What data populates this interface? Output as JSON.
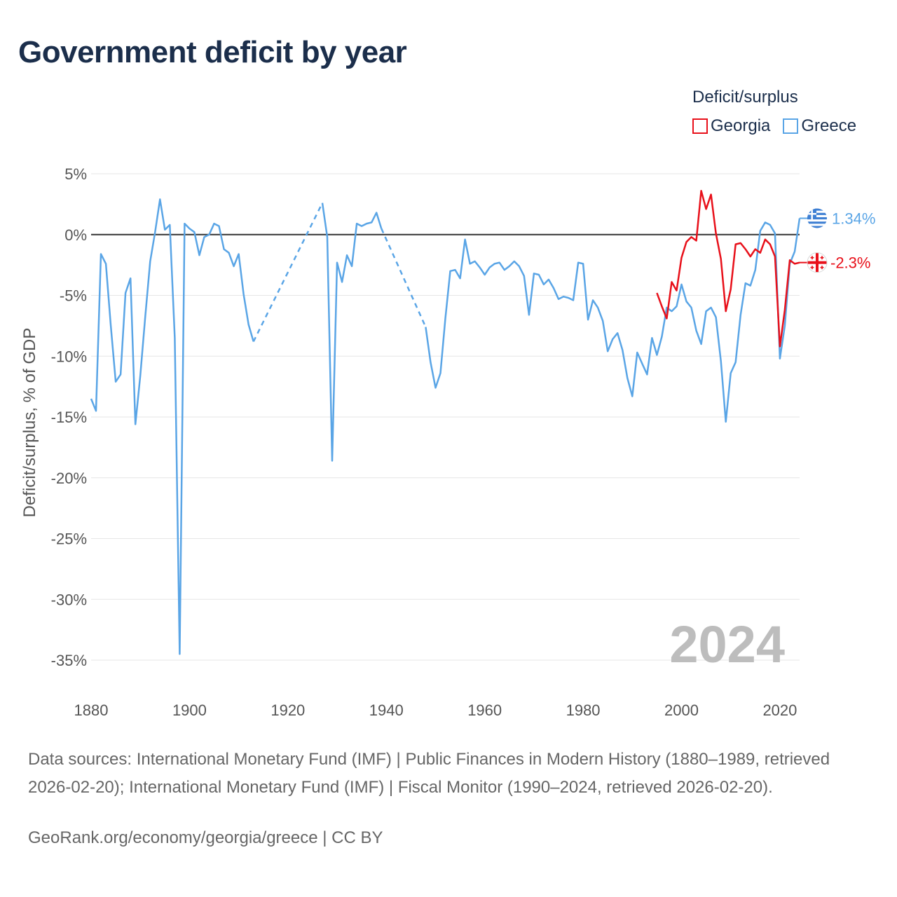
{
  "title": "Government deficit by year",
  "legend": {
    "title": "Deficit/surplus",
    "items": [
      {
        "label": "Georgia",
        "color": "#e8101a"
      },
      {
        "label": "Greece",
        "color": "#5aa5e6"
      }
    ]
  },
  "chart_data": {
    "type": "line",
    "title": "Government deficit by year",
    "xlabel": "",
    "ylabel": "Deficit/surplus, % of GDP",
    "xlim": [
      1880,
      2024
    ],
    "ylim": [
      -35,
      5
    ],
    "x_ticks": [
      1880,
      1900,
      1920,
      1940,
      1960,
      1980,
      2000,
      2020
    ],
    "x_tick_labels": [
      "1880",
      "1900",
      "1920",
      "1940",
      "1960",
      "1980",
      "2000",
      "2020"
    ],
    "y_ticks": [
      5,
      0,
      -5,
      -10,
      -15,
      -20,
      -25,
      -30,
      -35
    ],
    "y_tick_labels": [
      "5%",
      "0%",
      "-5%",
      "-10%",
      "-15%",
      "-20%",
      "-25%",
      "-30%",
      "-35%"
    ],
    "year_label": "2024",
    "series": [
      {
        "name": "Greece",
        "color": "#5aa5e6",
        "end_label": "1.34%",
        "x": [
          1880,
          1881,
          1882,
          1883,
          1884,
          1885,
          1886,
          1887,
          1888,
          1889,
          1890,
          1891,
          1892,
          1893,
          1894,
          1895,
          1896,
          1897,
          1898,
          1899,
          1900,
          1901,
          1902,
          1903,
          1904,
          1905,
          1906,
          1907,
          1908,
          1909,
          1910,
          1911,
          1912,
          1913,
          1927,
          1928,
          1929,
          1930,
          1931,
          1932,
          1933,
          1934,
          1935,
          1936,
          1937,
          1938,
          1939,
          1948,
          1949,
          1950,
          1951,
          1952,
          1953,
          1954,
          1955,
          1956,
          1957,
          1958,
          1959,
          1960,
          1961,
          1962,
          1963,
          1964,
          1965,
          1966,
          1967,
          1968,
          1969,
          1970,
          1971,
          1972,
          1973,
          1974,
          1975,
          1976,
          1977,
          1978,
          1979,
          1980,
          1981,
          1982,
          1983,
          1984,
          1985,
          1986,
          1987,
          1988,
          1989,
          1990,
          1991,
          1992,
          1993,
          1994,
          1995,
          1996,
          1997,
          1998,
          1999,
          2000,
          2001,
          2002,
          2003,
          2004,
          2005,
          2006,
          2007,
          2008,
          2009,
          2010,
          2011,
          2012,
          2013,
          2014,
          2015,
          2016,
          2017,
          2018,
          2019,
          2020,
          2021,
          2022,
          2023,
          2024
        ],
        "values": [
          -13.5,
          -14.5,
          -1.6,
          -2.4,
          -7.5,
          -12.1,
          -11.5,
          -4.8,
          -3.6,
          -15.6,
          -11.6,
          -6.8,
          -2.2,
          0.2,
          2.9,
          0.4,
          0.8,
          -8.5,
          -34.5,
          0.9,
          0.5,
          0.2,
          -1.7,
          -0.2,
          0.0,
          0.9,
          0.7,
          -1.2,
          -1.5,
          -2.6,
          -1.6,
          -4.9,
          -7.4,
          -8.8,
          2.6,
          -0.2,
          -18.6,
          -2.3,
          -3.9,
          -1.7,
          -2.6,
          0.9,
          0.7,
          0.9,
          1.0,
          1.8,
          0.5,
          -7.6,
          -10.5,
          -12.6,
          -11.4,
          -6.9,
          -3.0,
          -2.9,
          -3.6,
          -0.4,
          -2.4,
          -2.2,
          -2.7,
          -3.3,
          -2.7,
          -2.4,
          -2.3,
          -2.9,
          -2.6,
          -2.2,
          -2.6,
          -3.4,
          -6.6,
          -3.2,
          -3.3,
          -4.1,
          -3.7,
          -4.4,
          -5.3,
          -5.1,
          -5.2,
          -5.4,
          -2.3,
          -2.4,
          -7.0,
          -5.4,
          -6.0,
          -7.1,
          -9.6,
          -8.6,
          -8.1,
          -9.5,
          -11.8,
          -13.3,
          -9.7,
          -10.6,
          -11.5,
          -8.5,
          -9.9,
          -8.4,
          -6.0,
          -6.3,
          -5.9,
          -4.1,
          -5.5,
          -6.0,
          -7.9,
          -9.0,
          -6.3,
          -6.0,
          -6.8,
          -10.4,
          -15.4,
          -11.4,
          -10.5,
          -6.6,
          -4.0,
          -4.2,
          -2.9,
          0.3,
          1.0,
          0.8,
          0.1,
          -10.2,
          -7.5,
          -2.4,
          -1.4,
          1.34
        ],
        "dashed_gaps": [
          [
            1913,
            1927
          ],
          [
            1939,
            1948
          ]
        ]
      },
      {
        "name": "Georgia",
        "color": "#e8101a",
        "end_label": "-2.3%",
        "x": [
          1995,
          1996,
          1997,
          1998,
          1999,
          2000,
          2001,
          2002,
          2003,
          2004,
          2005,
          2006,
          2007,
          2008,
          2009,
          2010,
          2011,
          2012,
          2013,
          2014,
          2015,
          2016,
          2017,
          2018,
          2019,
          2020,
          2021,
          2022,
          2023,
          2024
        ],
        "values": [
          -4.8,
          -5.9,
          -6.9,
          -3.9,
          -4.6,
          -1.9,
          -0.6,
          -0.2,
          -0.5,
          3.6,
          2.1,
          3.3,
          0.1,
          -2.0,
          -6.3,
          -4.5,
          -0.8,
          -0.7,
          -1.2,
          -1.8,
          -1.2,
          -1.5,
          -0.4,
          -0.8,
          -1.8,
          -9.2,
          -6.2,
          -2.1,
          -2.4,
          -2.3
        ]
      }
    ]
  },
  "footer": {
    "sources": "Data sources: International Monetary Fund (IMF) | Public Finances in Modern History (1880–1989, retrieved 2026-02-20); International Monetary Fund (IMF) | Fiscal Monitor (1990–2024, retrieved 2026-02-20).",
    "credit": "GeoRank.org/economy/georgia/greece | CC BY"
  }
}
